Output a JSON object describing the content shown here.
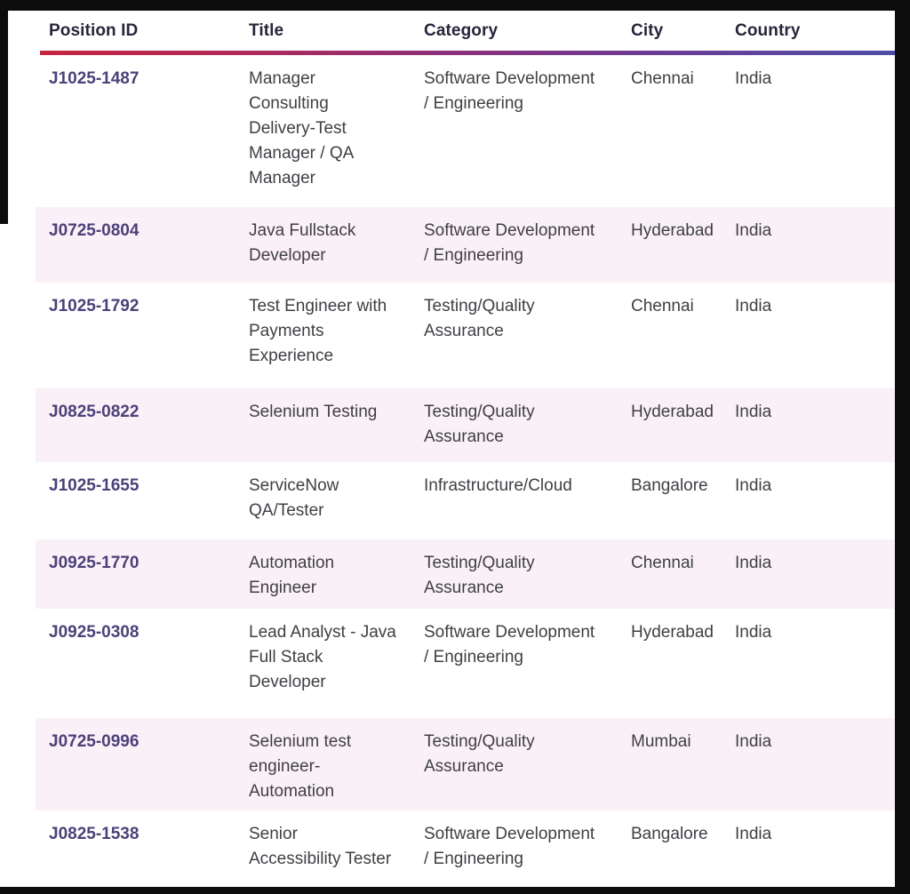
{
  "table": {
    "columns": [
      "Position ID",
      "Title",
      "Category",
      "City",
      "Country"
    ],
    "rows": [
      {
        "position_id": "J1025-1487",
        "title": "Manager\nConsulting\nDelivery-Test\nManager / QA\nManager",
        "category": "Software Development\n/ Engineering",
        "city": "Chennai",
        "country": "India"
      },
      {
        "position_id": "J0725-0804",
        "title": "Java Fullstack\nDeveloper",
        "category": "Software Development\n/ Engineering",
        "city": "Hyderabad",
        "country": "India"
      },
      {
        "position_id": "J1025-1792",
        "title": "Test Engineer with\nPayments\nExperience",
        "category": "Testing/Quality\nAssurance",
        "city": "Chennai",
        "country": "India"
      },
      {
        "position_id": "J0825-0822",
        "title": "Selenium Testing",
        "category": "Testing/Quality\nAssurance",
        "city": "Hyderabad",
        "country": "India"
      },
      {
        "position_id": "J1025-1655",
        "title": "ServiceNow\nQA/Tester",
        "category": "Infrastructure/Cloud",
        "city": "Bangalore",
        "country": "India"
      },
      {
        "position_id": "J0925-1770",
        "title": "Automation\nEngineer",
        "category": "Testing/Quality\nAssurance",
        "city": "Chennai",
        "country": "India"
      },
      {
        "position_id": "J0925-0308",
        "title": "Lead Analyst - Java\nFull Stack\nDeveloper",
        "category": "Software Development\n/ Engineering",
        "city": "Hyderabad",
        "country": "India"
      },
      {
        "position_id": "J0725-0996",
        "title": "Selenium test\nengineer-\nAutomation",
        "category": "Testing/Quality\nAssurance",
        "city": "Mumbai",
        "country": "India"
      },
      {
        "position_id": "J0825-1538",
        "title": "Senior\nAccessibility Tester",
        "category": "Software Development\n/ Engineering",
        "city": "Bangalore",
        "country": "India"
      }
    ]
  },
  "colors": {
    "position_id_link": "#4c4178",
    "header_text": "#26263c",
    "body_text": "#3f3f45",
    "row_stripe": "#faf1f8",
    "accent_gradient_left": "#c62540",
    "accent_gradient_mid": "#8f2f77",
    "accent_gradient_right": "#4c4ea6",
    "frame_bar": "#0c0c0c"
  }
}
